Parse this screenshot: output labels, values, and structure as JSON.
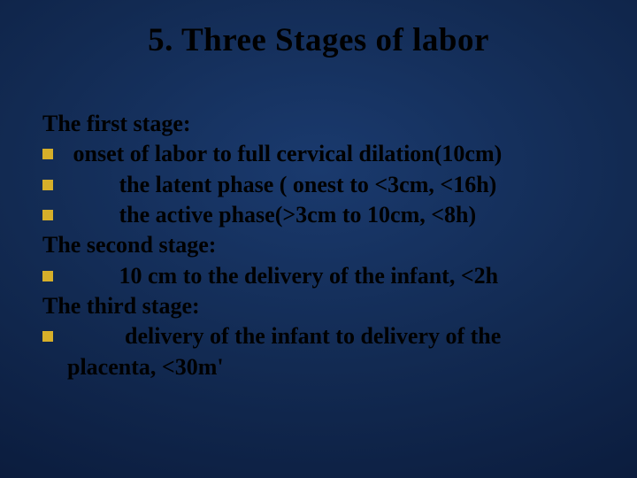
{
  "title": "5. Three Stages of labor",
  "bullet_color": "#d6af2a",
  "text_color": "#000000",
  "background_gradient": [
    "#1a3a6e",
    "#122a52",
    "#0a1a3a",
    "#030a1c"
  ],
  "title_fontsize": 37,
  "body_fontsize": 26,
  "lines": {
    "h1": "The first stage:",
    "b1": " onset of labor to full cervical dilation(10cm)",
    "b2": "         the latent phase ( onest to <3cm, <16h)",
    "b3": "         the active phase(>3cm to 10cm, <8h)",
    "h2": "The second stage:",
    "b4": "         10 cm to the delivery of the infant, <2h",
    "h3": "The third stage:",
    "b5": "          delivery of the infant to delivery of the",
    "b5_cont": "placenta, <30m'"
  }
}
